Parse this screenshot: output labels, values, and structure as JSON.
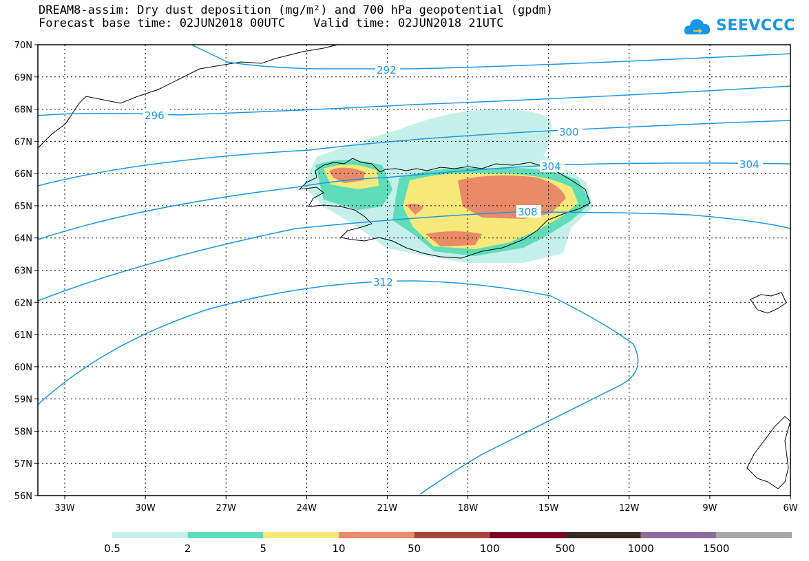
{
  "header": {
    "line1": "DREAM8-assim: Dry dust deposition (mg/m²) and 700 hPa geopotential (gpdm)",
    "line2": "Forecast base time: 02JUN2018 00UTC    Valid time: 02JUN2018 21UTC",
    "logo_text": "SEEVCCC"
  },
  "map": {
    "lon_range": [
      -34,
      -6
    ],
    "lat_range": [
      56,
      70
    ],
    "lat_ticks": [
      "56N",
      "57N",
      "58N",
      "59N",
      "60N",
      "61N",
      "62N",
      "63N",
      "64N",
      "65N",
      "66N",
      "67N",
      "68N",
      "69N",
      "70N"
    ],
    "lon_ticks": [
      "33W",
      "30W",
      "27W",
      "24W",
      "21W",
      "18W",
      "15W",
      "12W",
      "9W",
      "6W"
    ],
    "grid": true,
    "contour_color": "#1a96e6",
    "contour_labels": [
      "292",
      "296",
      "300",
      "304",
      "304",
      "308",
      "312"
    ]
  },
  "legend": {
    "colors": [
      "#c5f0ea",
      "#5fdcb8",
      "#f7e979",
      "#e98a68",
      "#a5463a",
      "#7d0227",
      "#3a2a1c",
      "#8f6a9c",
      "#a7a7a7"
    ],
    "labels": [
      "0.5",
      "2",
      "5",
      "10",
      "50",
      "100",
      "500",
      "1000",
      "1500"
    ]
  }
}
